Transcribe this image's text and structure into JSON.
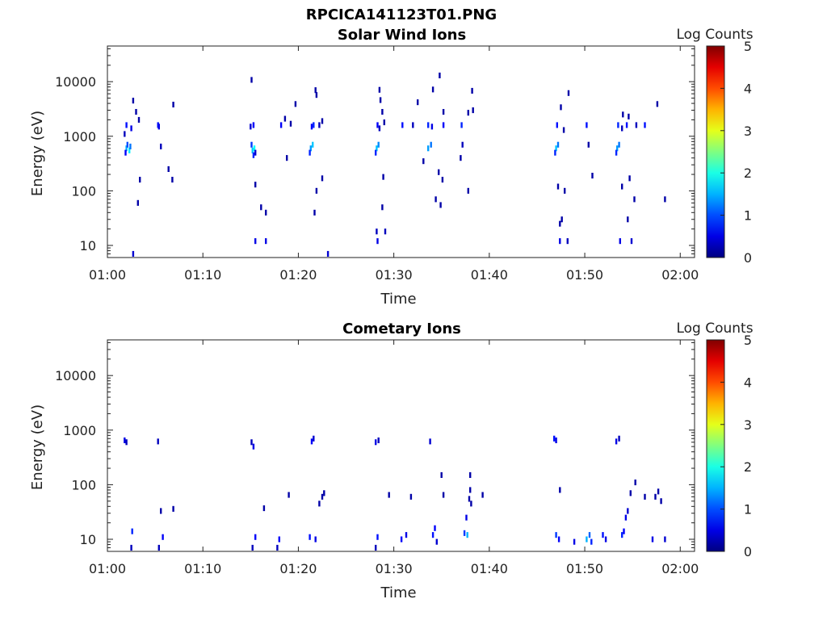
{
  "figure_title": "RPCICA141123T01.PNG",
  "chart_data": [
    {
      "type": "heatmap",
      "title": "Solar Wind Ions",
      "xlabel": "Time",
      "ylabel": "Energy (eV)",
      "x_ticks": [
        "01:00",
        "01:10",
        "01:20",
        "01:30",
        "01:40",
        "01:50",
        "02:00"
      ],
      "xlim_minutes": [
        0,
        61.5
      ],
      "y_scale": "log",
      "ylim": [
        6,
        45000
      ],
      "y_ticks": [
        "10",
        "100",
        "1000",
        "10000"
      ],
      "colorbar": {
        "label": "Log Counts",
        "range": [
          0,
          5
        ],
        "ticks": [
          "0",
          "1",
          "2",
          "3",
          "4",
          "5"
        ],
        "colormap": "jet"
      },
      "cells": [
        [
          2.0,
          600,
          1.5
        ],
        [
          2.3,
          550,
          1.8
        ],
        [
          2.1,
          700,
          1.0
        ],
        [
          1.9,
          500,
          0.6
        ],
        [
          2.4,
          650,
          1.2
        ],
        [
          2.0,
          1600,
          0.7
        ],
        [
          2.5,
          1400,
          0.5
        ],
        [
          1.8,
          1100,
          0.3
        ],
        [
          3.0,
          2800,
          0.2
        ],
        [
          2.7,
          4500,
          0.2
        ],
        [
          3.3,
          2000,
          0.2
        ],
        [
          5.3,
          1600,
          0.7
        ],
        [
          5.4,
          1500,
          0.5
        ],
        [
          5.6,
          650,
          0.3
        ],
        [
          3.4,
          160,
          0.2
        ],
        [
          3.2,
          60,
          0.2
        ],
        [
          6.9,
          3800,
          0.2
        ],
        [
          6.4,
          250,
          0.2
        ],
        [
          6.8,
          160,
          0.2
        ],
        [
          2.7,
          7,
          0.4
        ],
        [
          15.2,
          550,
          1.6
        ],
        [
          15.4,
          600,
          1.9
        ],
        [
          15.1,
          700,
          0.9
        ],
        [
          15.3,
          450,
          0.8
        ],
        [
          15.5,
          500,
          0.4
        ],
        [
          15.3,
          1600,
          0.6
        ],
        [
          15.0,
          1500,
          0.4
        ],
        [
          15.1,
          10800,
          0.2
        ],
        [
          15.5,
          130,
          0.2
        ],
        [
          16.1,
          50,
          0.2
        ],
        [
          16.6,
          40,
          0.2
        ],
        [
          15.5,
          12,
          0.5
        ],
        [
          16.6,
          12,
          0.5
        ],
        [
          18.2,
          1600,
          0.6
        ],
        [
          18.6,
          2100,
          0.2
        ],
        [
          19.2,
          1700,
          0.2
        ],
        [
          19.7,
          3900,
          0.2
        ],
        [
          18.8,
          400,
          0.2
        ],
        [
          21.3,
          600,
          1.4
        ],
        [
          21.5,
          700,
          1.6
        ],
        [
          21.2,
          500,
          0.8
        ],
        [
          21.6,
          1600,
          0.8
        ],
        [
          21.4,
          1500,
          0.6
        ],
        [
          22.2,
          1600,
          0.3
        ],
        [
          22.5,
          1900,
          0.2
        ],
        [
          21.8,
          7000,
          0.2
        ],
        [
          21.9,
          5700,
          0.2
        ],
        [
          22.5,
          170,
          0.2
        ],
        [
          21.9,
          100,
          0.2
        ],
        [
          21.7,
          40,
          0.2
        ],
        [
          23.1,
          7,
          0.4
        ],
        [
          28.2,
          600,
          1.6
        ],
        [
          28.4,
          700,
          1.3
        ],
        [
          28.1,
          500,
          0.8
        ],
        [
          28.3,
          1600,
          0.6
        ],
        [
          28.5,
          1400,
          0.3
        ],
        [
          28.8,
          2800,
          0.2
        ],
        [
          28.6,
          4600,
          0.2
        ],
        [
          28.5,
          7100,
          0.2
        ],
        [
          29.0,
          1800,
          0.2
        ],
        [
          28.9,
          180,
          0.2
        ],
        [
          28.8,
          50,
          0.2
        ],
        [
          28.3,
          12,
          0.5
        ],
        [
          28.2,
          18,
          0.3
        ],
        [
          29.1,
          18,
          0.3
        ],
        [
          30.9,
          1600,
          0.7
        ],
        [
          32.0,
          1600,
          0.3
        ],
        [
          32.5,
          4200,
          0.2
        ],
        [
          33.6,
          600,
          1.4
        ],
        [
          33.9,
          700,
          1.2
        ],
        [
          33.6,
          1600,
          0.8
        ],
        [
          34.0,
          1500,
          0.5
        ],
        [
          33.1,
          350,
          0.2
        ],
        [
          34.1,
          7200,
          0.2
        ],
        [
          34.8,
          13000,
          0.2
        ],
        [
          35.2,
          2800,
          0.2
        ],
        [
          35.2,
          1600,
          0.6
        ],
        [
          34.7,
          220,
          0.2
        ],
        [
          35.1,
          160,
          0.2
        ],
        [
          34.9,
          55,
          0.2
        ],
        [
          34.4,
          70,
          0.2
        ],
        [
          37.1,
          1600,
          0.8
        ],
        [
          37.2,
          700,
          0.3
        ],
        [
          37.0,
          400,
          0.2
        ],
        [
          37.8,
          2700,
          0.2
        ],
        [
          38.3,
          3000,
          0.2
        ],
        [
          38.2,
          6800,
          0.2
        ],
        [
          37.8,
          100,
          0.2
        ],
        [
          47.0,
          600,
          1.6
        ],
        [
          47.2,
          700,
          1.2
        ],
        [
          46.9,
          500,
          0.8
        ],
        [
          47.1,
          1600,
          0.7
        ],
        [
          47.5,
          3400,
          0.2
        ],
        [
          47.8,
          1300,
          0.2
        ],
        [
          48.3,
          6200,
          0.2
        ],
        [
          47.9,
          100,
          0.2
        ],
        [
          47.2,
          120,
          0.2
        ],
        [
          47.6,
          30,
          0.2
        ],
        [
          47.4,
          25,
          0.2
        ],
        [
          47.4,
          12,
          0.5
        ],
        [
          48.2,
          12,
          0.3
        ],
        [
          50.2,
          1600,
          0.7
        ],
        [
          50.4,
          700,
          0.2
        ],
        [
          50.8,
          190,
          0.2
        ],
        [
          53.4,
          600,
          1.4
        ],
        [
          53.6,
          700,
          1.2
        ],
        [
          53.3,
          500,
          0.8
        ],
        [
          53.5,
          1600,
          0.8
        ],
        [
          53.9,
          1400,
          0.3
        ],
        [
          54.4,
          1600,
          0.7
        ],
        [
          54.6,
          2300,
          0.2
        ],
        [
          54.0,
          2500,
          0.2
        ],
        [
          55.4,
          1600,
          0.3
        ],
        [
          56.3,
          1600,
          0.7
        ],
        [
          57.6,
          3900,
          0.2
        ],
        [
          54.7,
          170,
          0.2
        ],
        [
          53.9,
          120,
          0.2
        ],
        [
          54.5,
          30,
          0.2
        ],
        [
          55.2,
          70,
          0.2
        ],
        [
          53.7,
          12,
          0.5
        ],
        [
          54.9,
          12,
          0.4
        ],
        [
          58.4,
          70,
          0.2
        ]
      ]
    },
    {
      "type": "heatmap",
      "title": "Cometary Ions",
      "xlabel": "Time",
      "ylabel": "Energy (eV)",
      "x_ticks": [
        "01:00",
        "01:10",
        "01:20",
        "01:30",
        "01:40",
        "01:50",
        "02:00"
      ],
      "xlim_minutes": [
        0,
        61.5
      ],
      "y_scale": "log",
      "ylim": [
        6,
        45000
      ],
      "y_ticks": [
        "10",
        "100",
        "1000",
        "10000"
      ],
      "colorbar": {
        "label": "Log Counts",
        "range": [
          0,
          5
        ],
        "ticks": [
          "0",
          "1",
          "2",
          "3",
          "4",
          "5"
        ],
        "colormap": "jet"
      },
      "cells": [
        [
          1.8,
          650,
          0.5
        ],
        [
          2.0,
          600,
          0.3
        ],
        [
          2.6,
          14,
          0.8
        ],
        [
          2.5,
          7,
          0.3
        ],
        [
          5.3,
          620,
          0.3
        ],
        [
          5.6,
          33,
          0.2
        ],
        [
          5.8,
          11,
          0.6
        ],
        [
          5.4,
          7,
          0.3
        ],
        [
          6.9,
          36,
          0.2
        ],
        [
          15.3,
          500,
          0.5
        ],
        [
          15.1,
          600,
          0.3
        ],
        [
          15.5,
          11,
          0.6
        ],
        [
          15.2,
          7,
          0.3
        ],
        [
          16.4,
          37,
          0.2
        ],
        [
          18.0,
          10,
          0.6
        ],
        [
          17.8,
          7,
          0.3
        ],
        [
          19.0,
          65,
          0.2
        ],
        [
          21.4,
          620,
          0.6
        ],
        [
          21.6,
          700,
          0.4
        ],
        [
          21.2,
          11,
          0.7
        ],
        [
          21.8,
          10,
          0.5
        ],
        [
          22.5,
          60,
          0.2
        ],
        [
          22.7,
          70,
          0.2
        ],
        [
          22.2,
          45,
          0.2
        ],
        [
          28.1,
          600,
          0.5
        ],
        [
          28.4,
          650,
          0.3
        ],
        [
          28.3,
          11,
          0.7
        ],
        [
          28.1,
          7,
          0.3
        ],
        [
          29.5,
          65,
          0.2
        ],
        [
          30.8,
          10,
          0.6
        ],
        [
          31.3,
          12,
          0.5
        ],
        [
          31.8,
          60,
          0.2
        ],
        [
          33.8,
          620,
          0.4
        ],
        [
          34.1,
          12,
          0.7
        ],
        [
          34.3,
          16,
          0.6
        ],
        [
          34.5,
          9,
          0.4
        ],
        [
          35.0,
          150,
          0.2
        ],
        [
          35.2,
          65,
          0.2
        ],
        [
          37.4,
          13,
          0.9
        ],
        [
          37.7,
          12,
          1.5
        ],
        [
          37.6,
          25,
          0.5
        ],
        [
          38.0,
          150,
          0.2
        ],
        [
          38.0,
          80,
          0.2
        ],
        [
          37.9,
          55,
          0.2
        ],
        [
          38.1,
          45,
          0.2
        ],
        [
          39.3,
          65,
          0.2
        ],
        [
          46.8,
          700,
          0.7
        ],
        [
          47.0,
          650,
          0.5
        ],
        [
          47.0,
          12,
          0.9
        ],
        [
          47.3,
          10,
          0.6
        ],
        [
          47.4,
          80,
          0.2
        ],
        [
          48.9,
          9,
          0.5
        ],
        [
          50.2,
          10,
          1.5
        ],
        [
          50.5,
          12,
          1.1
        ],
        [
          50.7,
          9,
          0.8
        ],
        [
          51.9,
          12,
          0.7
        ],
        [
          52.2,
          10,
          0.5
        ],
        [
          53.3,
          620,
          0.5
        ],
        [
          53.6,
          700,
          0.3
        ],
        [
          53.9,
          12,
          0.8
        ],
        [
          54.1,
          14,
          0.6
        ],
        [
          54.3,
          25,
          0.5
        ],
        [
          54.5,
          33,
          0.4
        ],
        [
          55.3,
          110,
          0.2
        ],
        [
          56.3,
          60,
          0.2
        ],
        [
          57.1,
          10,
          0.5
        ],
        [
          57.4,
          60,
          0.2
        ],
        [
          57.7,
          75,
          0.2
        ],
        [
          58.0,
          50,
          0.2
        ],
        [
          58.4,
          10,
          0.4
        ],
        [
          54.8,
          70,
          0.2
        ]
      ]
    }
  ]
}
